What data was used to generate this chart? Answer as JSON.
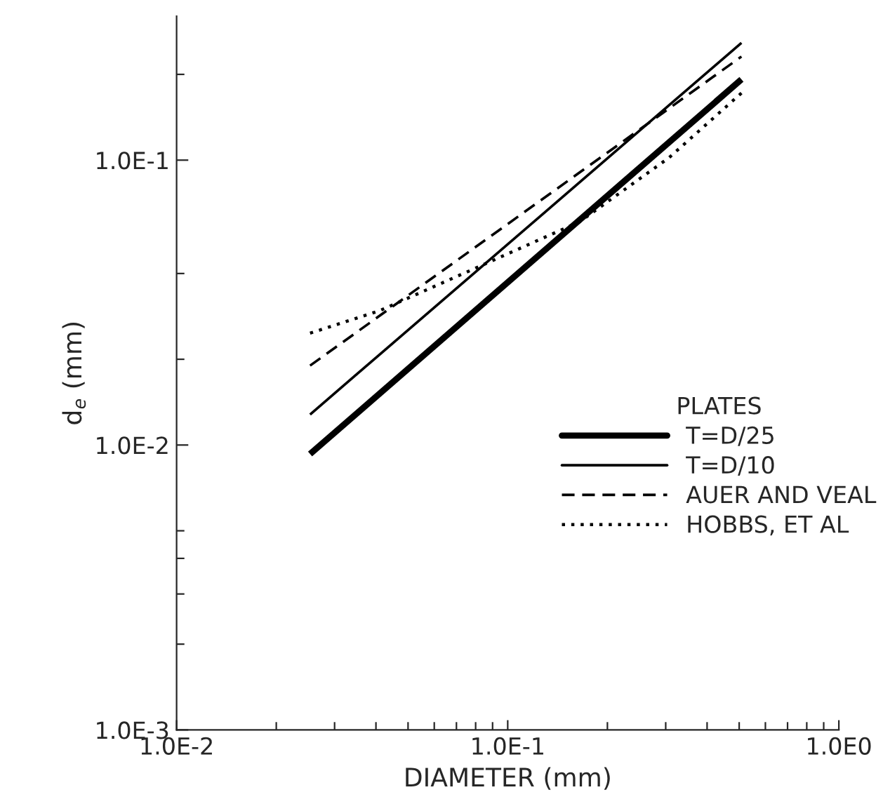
{
  "chart_data": {
    "type": "line",
    "xlabel": "DIAMETER (mm)",
    "ylabel": "d$_{e}$ (mm)",
    "log": "xy",
    "legend_title": "PLATES",
    "legend": "center right",
    "grid": false,
    "marker": "none",
    "xlim": [
      0.01,
      1.0
    ],
    "ylim": [
      0.001,
      0.32
    ],
    "xticks": [
      {
        "value": 0.01,
        "label": "1.0E-2"
      },
      {
        "value": 0.02,
        "label": null
      },
      {
        "value": 0.03,
        "label": null
      },
      {
        "value": 0.04,
        "label": null
      },
      {
        "value": 0.05,
        "label": null
      },
      {
        "value": 0.06,
        "label": null
      },
      {
        "value": 0.07,
        "label": null
      },
      {
        "value": 0.08,
        "label": null
      },
      {
        "value": 0.09,
        "label": null
      },
      {
        "value": 0.1,
        "label": "1.0E-1"
      },
      {
        "value": 0.2,
        "label": null
      },
      {
        "value": 0.3,
        "label": null
      },
      {
        "value": 0.4,
        "label": null
      },
      {
        "value": 0.5,
        "label": null
      },
      {
        "value": 0.6,
        "label": null
      },
      {
        "value": 0.7,
        "label": null
      },
      {
        "value": 0.8,
        "label": null
      },
      {
        "value": 0.9,
        "label": null
      },
      {
        "value": 1.0,
        "label": "1.0E0"
      }
    ],
    "yticks": [
      {
        "value": 0.001,
        "label": "1.0E-3"
      },
      {
        "value": 0.002,
        "label": null
      },
      {
        "value": 0.003,
        "label": null
      },
      {
        "value": 0.004,
        "label": null
      },
      {
        "value": 0.005,
        "label": null
      },
      {
        "value": 0.01,
        "label": "1.0E-2"
      },
      {
        "value": 0.02,
        "label": null
      },
      {
        "value": 0.04,
        "label": null
      },
      {
        "value": 0.1,
        "label": "1.0E-1"
      },
      {
        "value": 0.2,
        "label": null
      }
    ],
    "series": [
      {
        "name": "T=D/25",
        "color": "#000000",
        "line_style": "solid",
        "x": [
          0.0253,
          0.508
        ],
        "values": [
          0.0093,
          0.192
        ]
      },
      {
        "name": "T=D/10",
        "color": "#000000",
        "line_style": "solid",
        "x": [
          0.0253,
          0.508
        ],
        "values": [
          0.0128,
          0.258
        ]
      },
      {
        "name": "AUER AND VEAL",
        "color": "#000000",
        "line_style": "dashed",
        "x": [
          0.0253,
          0.508
        ],
        "values": [
          0.019,
          0.231
        ]
      },
      {
        "name": "HOBBS, ET AL",
        "color": "#000000",
        "line_style": "dotted",
        "x": [
          0.0253,
          0.041,
          0.0857,
          0.165,
          0.307,
          0.508
        ],
        "values": [
          0.0247,
          0.0296,
          0.0433,
          0.0608,
          0.102,
          0.172
        ]
      }
    ]
  }
}
